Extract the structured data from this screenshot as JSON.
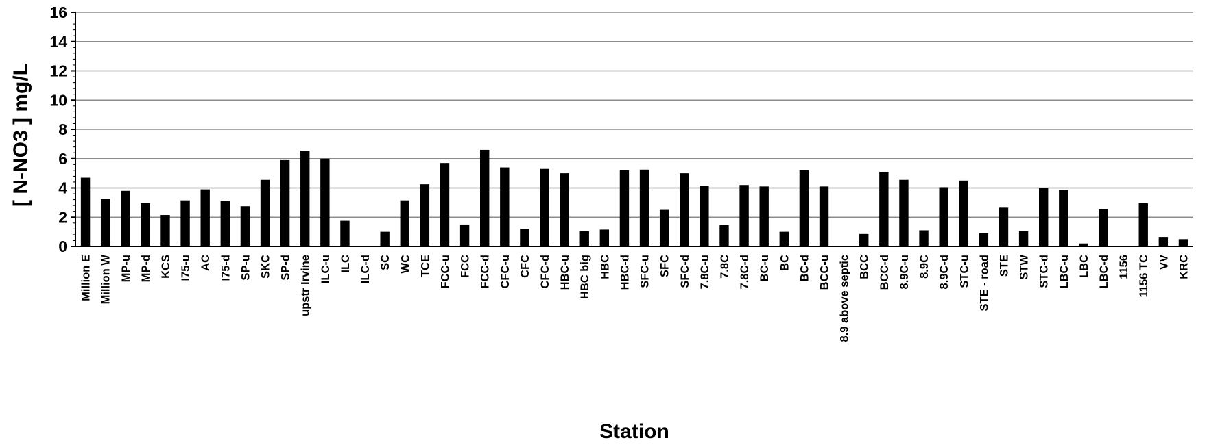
{
  "chart_data": {
    "type": "bar",
    "title": "",
    "xlabel": "Station",
    "ylabel": "[ N-NO3 ]  mg/L",
    "ylim": [
      0,
      16
    ],
    "yticks": [
      "0",
      "2",
      "4",
      "6",
      "8",
      "10",
      "12",
      "14",
      "16"
    ],
    "grid": true,
    "legend": "none",
    "bar_color": "#000000",
    "categories": [
      "Million E",
      "Million W",
      "MP-u",
      "MP-d",
      "KCS",
      "I75-u",
      "AC",
      "I75-d",
      "SP-u",
      "SKC",
      "SP-d",
      "upstr Irvine",
      "ILC-u",
      "ILC",
      "ILC-d",
      "SC",
      "WC",
      "TCE",
      "FCC-u",
      "FCC",
      "FCC-d",
      "CFC-u",
      "CFC",
      "CFC-d",
      "HBC-u",
      "HBC big",
      "HBC",
      "HBC-d",
      "SFC-u",
      "SFC",
      "SFC-d",
      "7.8C-u",
      "7.8C",
      "7.8C-d",
      "BC-u",
      "BC",
      "BC-d",
      "BCC-u",
      "8.9 above septic",
      "BCC",
      "BCC-d",
      "8.9C-u",
      "8.9C",
      "8.9C-d",
      "STC-u",
      "STE - road",
      "STE",
      "STW",
      "STC-d",
      "LBC-u",
      "LBC",
      "LBC-d",
      "1156",
      "1156 TC",
      "VV",
      "KRC"
    ],
    "values": [
      4.7,
      3.25,
      3.8,
      2.95,
      2.15,
      3.15,
      3.9,
      3.1,
      2.75,
      4.55,
      5.9,
      6.55,
      6.0,
      1.75,
      0,
      1.0,
      3.15,
      4.25,
      5.7,
      1.5,
      6.6,
      5.4,
      1.2,
      5.3,
      5.0,
      1.05,
      1.15,
      5.2,
      5.25,
      2.5,
      5.0,
      4.15,
      1.45,
      4.2,
      4.1,
      1.0,
      5.2,
      4.1,
      0,
      0.85,
      5.1,
      4.55,
      1.1,
      4.05,
      4.5,
      0.9,
      2.65,
      1.05,
      4.0,
      3.85,
      0.2,
      2.55,
      0,
      2.95,
      0.65,
      0.5
    ]
  }
}
